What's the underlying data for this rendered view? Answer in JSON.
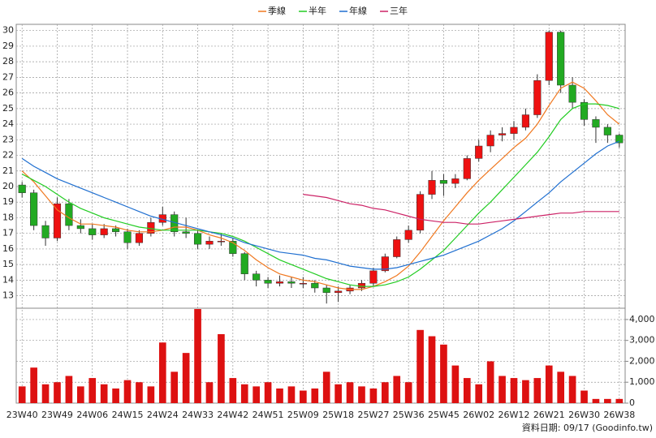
{
  "chart_data": {
    "type": "candlestick",
    "categories": [
      "23W40",
      null,
      null,
      "23W49",
      null,
      null,
      "24W06",
      null,
      null,
      "24W15",
      null,
      null,
      "24W24",
      null,
      null,
      "24W33",
      null,
      null,
      "24W42",
      null,
      null,
      "24W51",
      null,
      null,
      "25W09",
      null,
      null,
      "25W18",
      null,
      null,
      "25W27",
      null,
      null,
      "25W36",
      null,
      null,
      "25W45",
      null,
      null,
      "26W02",
      null,
      null,
      "26W12",
      null,
      null,
      "26W21",
      null,
      null,
      "26W30",
      null,
      null,
      "26W38"
    ],
    "open": [
      20.1,
      19.6,
      17.5,
      16.7,
      18.9,
      17.5,
      17.3,
      16.9,
      17.3,
      17.1,
      16.4,
      17.0,
      17.7,
      18.2,
      17.1,
      17.0,
      16.3,
      16.5,
      16.5,
      15.7,
      14.4,
      14.0,
      13.8,
      13.9,
      13.8,
      13.8,
      13.5,
      13.2,
      13.3,
      13.5,
      13.8,
      14.6,
      15.5,
      16.6,
      17.2,
      19.5,
      20.4,
      20.2,
      20.5,
      21.8,
      22.6,
      23.3,
      23.4,
      23.8,
      24.6,
      26.8,
      29.9,
      26.5,
      25.4,
      24.3,
      23.8,
      23.3
    ],
    "high": [
      20.3,
      19.8,
      17.8,
      19.3,
      19.2,
      17.9,
      17.6,
      17.6,
      17.5,
      17.3,
      17.2,
      18.0,
      18.7,
      18.4,
      18.0,
      17.2,
      16.8,
      17.0,
      16.7,
      15.8,
      14.6,
      14.2,
      14.3,
      14.2,
      14.2,
      14.0,
      13.7,
      13.6,
      13.7,
      14.0,
      14.8,
      15.7,
      16.8,
      17.5,
      19.7,
      21.0,
      20.8,
      20.8,
      22.0,
      23.0,
      23.6,
      23.8,
      24.2,
      25.0,
      27.2,
      30.0,
      30.0,
      27.0,
      25.6,
      24.5,
      24.0,
      23.4
    ],
    "low": [
      19.3,
      17.2,
      16.2,
      16.5,
      17.2,
      17.0,
      16.6,
      16.7,
      16.8,
      16.0,
      16.2,
      16.8,
      17.5,
      16.8,
      16.7,
      16.0,
      16.0,
      16.2,
      15.5,
      14.0,
      13.6,
      13.5,
      13.6,
      13.5,
      13.5,
      13.2,
      12.5,
      12.6,
      13.1,
      13.3,
      13.6,
      14.5,
      15.4,
      16.4,
      17.0,
      19.2,
      19.4,
      19.9,
      20.4,
      21.6,
      22.2,
      22.9,
      23.0,
      23.6,
      24.4,
      26.5,
      26.0,
      25.0,
      23.9,
      22.8,
      22.8,
      22.5
    ],
    "close": [
      19.6,
      17.5,
      16.7,
      18.9,
      17.5,
      17.3,
      16.9,
      17.3,
      17.1,
      16.4,
      17.0,
      17.7,
      18.2,
      17.1,
      17.0,
      16.3,
      16.5,
      16.5,
      15.7,
      14.4,
      14.0,
      13.8,
      13.9,
      13.8,
      13.8,
      13.5,
      13.2,
      13.3,
      13.5,
      13.8,
      14.6,
      15.5,
      16.6,
      17.2,
      19.5,
      20.4,
      20.2,
      20.5,
      21.8,
      22.6,
      23.3,
      23.4,
      23.8,
      24.6,
      26.8,
      29.9,
      26.5,
      25.4,
      24.3,
      23.8,
      23.3,
      22.8
    ],
    "up_color": "#ee1111",
    "down_color": "#22aa22",
    "series": [
      {
        "name": "季線",
        "color": "#f07820",
        "values": [
          21.0,
          20.3,
          19.4,
          18.5,
          18.0,
          17.6,
          17.6,
          17.5,
          17.4,
          17.2,
          17.1,
          17.1,
          17.2,
          17.4,
          17.4,
          17.2,
          16.9,
          16.7,
          16.4,
          15.9,
          15.3,
          14.8,
          14.4,
          14.2,
          14.0,
          13.9,
          13.7,
          13.5,
          13.4,
          13.4,
          13.6,
          13.9,
          14.3,
          14.9,
          15.8,
          16.8,
          17.8,
          18.7,
          19.6,
          20.4,
          21.1,
          21.8,
          22.5,
          23.1,
          24.0,
          25.2,
          26.3,
          26.7,
          26.3,
          25.5,
          24.6,
          24.0
        ]
      },
      {
        "name": "半年",
        "color": "#22cc22",
        "values": [
          20.8,
          20.4,
          20.0,
          19.5,
          19.0,
          18.6,
          18.3,
          18.0,
          17.8,
          17.6,
          17.4,
          17.3,
          17.2,
          17.2,
          17.2,
          17.2,
          17.1,
          17.0,
          16.8,
          16.5,
          16.1,
          15.7,
          15.3,
          15.0,
          14.7,
          14.4,
          14.1,
          13.9,
          13.7,
          13.6,
          13.6,
          13.7,
          13.9,
          14.2,
          14.7,
          15.3,
          15.9,
          16.7,
          17.5,
          18.3,
          19.0,
          19.8,
          20.6,
          21.4,
          22.2,
          23.2,
          24.3,
          25.0,
          25.3,
          25.3,
          25.2,
          25.0
        ]
      },
      {
        "name": "年線",
        "color": "#1f6fd0",
        "values": [
          21.8,
          21.3,
          20.9,
          20.5,
          20.2,
          19.9,
          19.6,
          19.3,
          19.0,
          18.7,
          18.4,
          18.1,
          17.9,
          17.7,
          17.5,
          17.3,
          17.1,
          16.9,
          16.7,
          16.4,
          16.2,
          16.0,
          15.8,
          15.7,
          15.6,
          15.4,
          15.3,
          15.1,
          14.9,
          14.8,
          14.7,
          14.7,
          14.8,
          15.0,
          15.2,
          15.4,
          15.6,
          15.9,
          16.2,
          16.5,
          16.9,
          17.3,
          17.8,
          18.4,
          19.0,
          19.6,
          20.3,
          20.9,
          21.5,
          22.1,
          22.6,
          22.9
        ]
      },
      {
        "name": "三年",
        "color": "#cc2266",
        "values": [
          null,
          null,
          null,
          null,
          null,
          null,
          null,
          null,
          null,
          null,
          null,
          null,
          null,
          null,
          null,
          null,
          null,
          null,
          null,
          null,
          null,
          null,
          null,
          null,
          19.5,
          19.4,
          19.3,
          19.1,
          18.9,
          18.8,
          18.6,
          18.5,
          18.3,
          18.1,
          17.9,
          17.8,
          17.7,
          17.7,
          17.6,
          17.6,
          17.7,
          17.8,
          17.9,
          18.0,
          18.1,
          18.2,
          18.3,
          18.3,
          18.4,
          18.4,
          18.4,
          18.4
        ]
      }
    ],
    "volume_color": "#dd1111",
    "volume": [
      800,
      1700,
      900,
      1000,
      1300,
      800,
      1200,
      900,
      700,
      1100,
      1000,
      800,
      2900,
      1500,
      2400,
      4500,
      1000,
      3300,
      1200,
      900,
      800,
      1000,
      700,
      800,
      600,
      700,
      1500,
      900,
      1000,
      800,
      700,
      1000,
      1300,
      1000,
      3500,
      3200,
      2800,
      1800,
      1200,
      900,
      2000,
      1300,
      1200,
      1100,
      1200,
      1800,
      1500,
      1300,
      600,
      200,
      200,
      200
    ],
    "ylim": [
      12.2,
      30.4
    ],
    "yticks": [
      13,
      14,
      15,
      16,
      17,
      18,
      19,
      20,
      21,
      22,
      23,
      24,
      25,
      26,
      27,
      28,
      29,
      30
    ],
    "y2lim": [
      0,
      4540
    ],
    "y2ticks": [
      0,
      {
        "value": 1000,
        "label": "1,000"
      },
      {
        "value": 2000,
        "label": "2,000"
      },
      {
        "value": 3000,
        "label": "3,000"
      },
      {
        "value": 4000,
        "label": "4,000"
      }
    ],
    "grid": true,
    "footnote": "資料日期: 09/17 (Goodinfo.tw)"
  }
}
